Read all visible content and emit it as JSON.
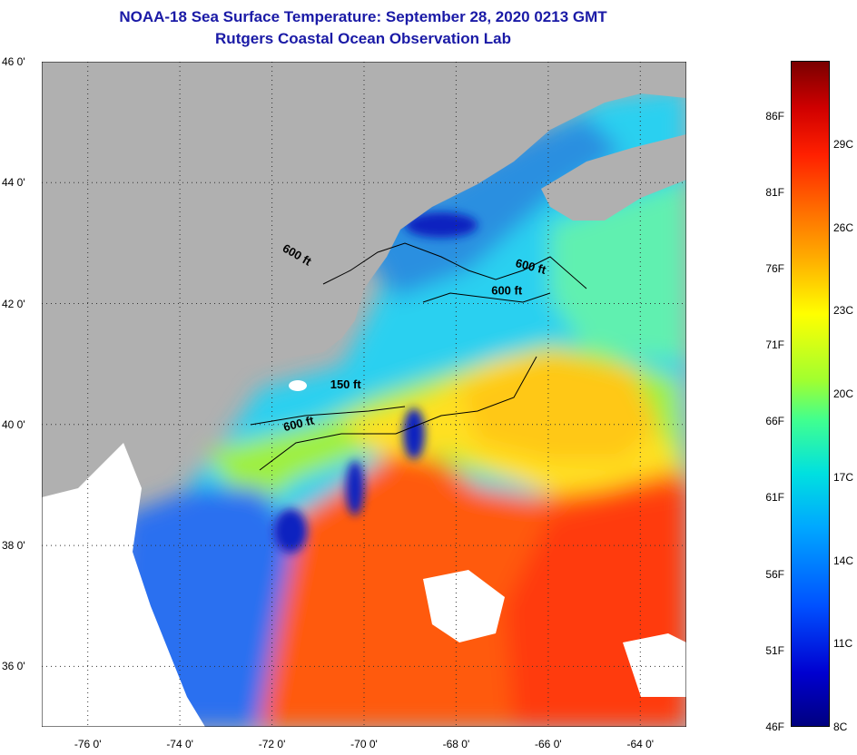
{
  "header": {
    "title": "NOAA-18 Sea Surface Temperature:  September 28, 2020 0213 GMT",
    "subtitle": "Rutgers Coastal Ocean Observation Lab"
  },
  "axes": {
    "lat_range": [
      35,
      46
    ],
    "lon_range": [
      -77,
      -63
    ],
    "lat_ticks": [
      {
        "value": 46,
        "label": "46 0'"
      },
      {
        "value": 44,
        "label": "44 0'"
      },
      {
        "value": 42,
        "label": "42 0'"
      },
      {
        "value": 40,
        "label": "40 0'"
      },
      {
        "value": 38,
        "label": "38 0'"
      },
      {
        "value": 36,
        "label": "36 0'"
      }
    ],
    "lon_ticks": [
      {
        "value": -76,
        "label": "-76 0'"
      },
      {
        "value": -74,
        "label": "-74 0'"
      },
      {
        "value": -72,
        "label": "-72 0'"
      },
      {
        "value": -70,
        "label": "-70 0'"
      },
      {
        "value": -68,
        "label": "-68 0'"
      },
      {
        "value": -66,
        "label": "-66 0'"
      },
      {
        "value": -64,
        "label": "-64 0'"
      }
    ]
  },
  "isobaths": [
    {
      "label": "600 ft",
      "lon": -71.5,
      "lat": 42.75,
      "rot": 30
    },
    {
      "label": "600 ft",
      "lon": -66.4,
      "lat": 42.55,
      "rot": 14
    },
    {
      "label": "600 ft",
      "lon": -66.9,
      "lat": 42.15,
      "rot": 0
    },
    {
      "label": "150 ft",
      "lon": -70.4,
      "lat": 40.6,
      "rot": 0
    },
    {
      "label": "600 ft",
      "lon": -71.4,
      "lat": 39.95,
      "rot": -14
    }
  ],
  "colorbar": {
    "f_labels": [
      "86F",
      "81F",
      "76F",
      "71F",
      "66F",
      "61F",
      "56F",
      "51F",
      "46F"
    ],
    "c_labels": [
      "29C",
      "26C",
      "23C",
      "20C",
      "17C",
      "14C",
      "11C",
      "8C"
    ]
  },
  "colors": {
    "land": "#b0b0b0",
    "cloud": "#ffffff",
    "title": "#1a1aa6"
  }
}
